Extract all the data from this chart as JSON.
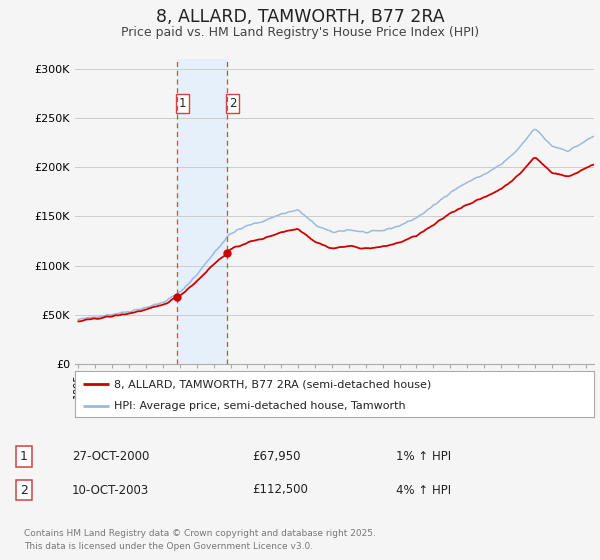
{
  "title": "8, ALLARD, TAMWORTH, B77 2RA",
  "subtitle": "Price paid vs. HM Land Registry's House Price Index (HPI)",
  "ylabel_ticks": [
    "£0",
    "£50K",
    "£100K",
    "£150K",
    "£200K",
    "£250K",
    "£300K"
  ],
  "ytick_values": [
    0,
    50000,
    100000,
    150000,
    200000,
    250000,
    300000
  ],
  "ylim": [
    0,
    310000
  ],
  "sale1_date": "27-OCT-2000",
  "sale1_price": 67950,
  "sale1_price_str": "£67,950",
  "sale1_pct": "1%",
  "sale2_date": "10-OCT-2003",
  "sale2_price": 112500,
  "sale2_price_str": "£112,500",
  "sale2_pct": "4%",
  "sale1_x": 2000.83,
  "sale2_x": 2003.78,
  "legend_line1": "8, ALLARD, TAMWORTH, B77 2RA (semi-detached house)",
  "legend_line2": "HPI: Average price, semi-detached house, Tamworth",
  "footer": "Contains HM Land Registry data © Crown copyright and database right 2025.\nThis data is licensed under the Open Government Licence v3.0.",
  "bg_color": "#f5f5f5",
  "plot_bg_color": "#f5f5f5",
  "grid_color": "#cccccc",
  "property_line_color": "#cc0000",
  "hpi_line_color": "#99bbdd",
  "shade_color": "#ddeeff",
  "vline_color": "#dd4444",
  "xstart": 1995,
  "xend": 2025.5
}
